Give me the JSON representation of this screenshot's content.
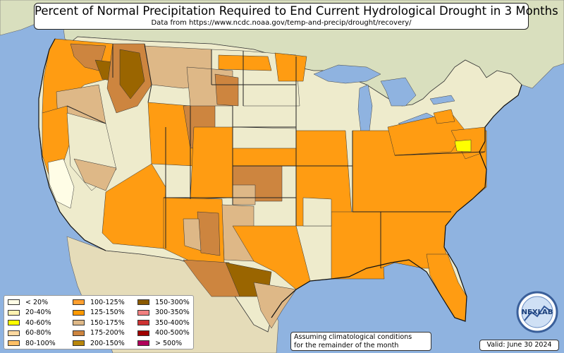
{
  "title": "Percent of Normal Precipitation Required to End Current Hydrological Drought in 3 Months",
  "subtitle": "Data from https://www.ncdc.noaa.gov/temp-and-precip/drought/recovery/",
  "legend": [
    {
      "label": "< 20%",
      "color": "#fffde6"
    },
    {
      "label": "20-40%",
      "color": "#fff2b0"
    },
    {
      "label": "40-60%",
      "color": "#ffff00"
    },
    {
      "label": "60-80%",
      "color": "#ffd9a0"
    },
    {
      "label": "80-100%",
      "color": "#ffbf66"
    },
    {
      "label": "100-125%",
      "color": "#ffa030"
    },
    {
      "label": "125-150%",
      "color": "#ff9900"
    },
    {
      "label": "150-175%",
      "color": "#deb887"
    },
    {
      "label": "175-200%",
      "color": "#cd853f"
    },
    {
      "label": "200-150%",
      "color": "#b8860b"
    },
    {
      "label": "150-300%",
      "color": "#8b5a00"
    },
    {
      "label": "300-350%",
      "color": "#f08080"
    },
    {
      "label": "350-400%",
      "color": "#cd3333"
    },
    {
      "label": "400-500%",
      "color": "#a00000"
    },
    {
      "label": "> 500%",
      "color": "#b0005a"
    }
  ],
  "note_line1": "Assuming climatological conditions",
  "note_line2": "for the remainder of the month",
  "valid": "Valid: June 30 2024",
  "logo_text": "NEXLAB",
  "colors": {
    "ocean": "#8fb3e0",
    "land_us": "#eeebcc",
    "land_other": "#dfe3c8",
    "orange": "#ff9c12",
    "tan": "#deb887",
    "brown": "#cd853f",
    "dark_brown": "#9a6500",
    "yellow": "#ffff00",
    "pale": "#fffde6"
  }
}
